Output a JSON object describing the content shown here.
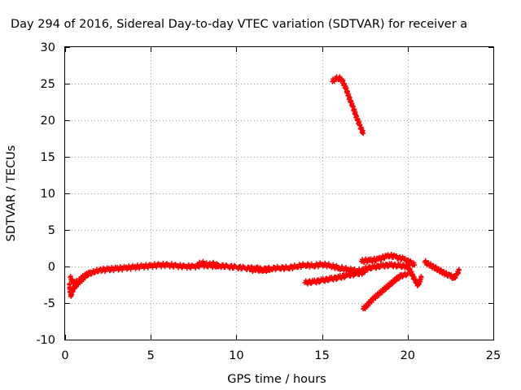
{
  "chart_data": {
    "type": "scatter",
    "title": "Day 294 of 2016, Sidereal Day-to-day VTEC variation (SDTVAR) for receiver a",
    "xlabel": "GPS time / hours",
    "ylabel": "SDTVAR / TECUs",
    "xlim": [
      0,
      25
    ],
    "ylim": [
      -10,
      30
    ],
    "xticks": [
      0,
      5,
      10,
      15,
      20,
      25
    ],
    "yticks": [
      -10,
      -5,
      0,
      5,
      10,
      15,
      20,
      25,
      30
    ],
    "xtick_labels": [
      "0",
      "5",
      "10",
      "15",
      "20",
      "25"
    ],
    "ytick_labels": [
      "-10",
      "-5",
      "0",
      "5",
      "10",
      "15",
      "20",
      "25",
      "30"
    ],
    "grid": true,
    "point_color": "#ff0000",
    "marker": "plus",
    "series": [
      {
        "x": [
          0.25,
          0.3,
          0.35,
          0.4,
          0.5,
          0.6,
          0.7,
          0.8,
          0.9,
          1.0,
          1.1,
          1.2,
          1.3,
          1.4,
          1.5
        ],
        "y": [
          -2.5,
          -3.5,
          -4.0,
          -3.5,
          -3.0,
          -2.8,
          -2.5,
          -2.2,
          -2.0,
          -1.8,
          -1.5,
          -1.3,
          -1.0,
          -0.9,
          -0.8
        ]
      },
      {
        "x": [
          0.3,
          0.4,
          0.5,
          0.6,
          0.8,
          1.0,
          1.2,
          1.4,
          1.6,
          1.8,
          2.0,
          2.5,
          3.0,
          3.5,
          4.0,
          4.5,
          5.0,
          5.5,
          6.0,
          6.5,
          7.0,
          7.5,
          8.0,
          8.5,
          9.0,
          9.5,
          10.0,
          10.5,
          11.0,
          11.5,
          12.0,
          12.5,
          13.0,
          13.5,
          14.0,
          14.5,
          15.0,
          15.5,
          16.0,
          16.5,
          17.0,
          17.5
        ],
        "y": [
          -1.5,
          -2.0,
          -2.3,
          -2.2,
          -2.0,
          -1.5,
          -1.2,
          -1.0,
          -0.8,
          -0.6,
          -0.5,
          -0.4,
          -0.3,
          -0.2,
          -0.1,
          0.0,
          0.1,
          0.2,
          0.2,
          0.1,
          0.0,
          0.0,
          0.2,
          0.1,
          0.1,
          0.0,
          -0.1,
          -0.2,
          -0.3,
          -0.4,
          -0.3,
          -0.2,
          -0.2,
          0.0,
          0.2,
          0.1,
          0.3,
          0.1,
          -0.2,
          -0.4,
          -0.6,
          -0.5
        ]
      },
      {
        "x": [
          7.8,
          8.0,
          8.2,
          8.4,
          8.6,
          8.8,
          9.0
        ],
        "y": [
          0.3,
          0.5,
          0.3,
          0.2,
          0.4,
          0.2,
          0.1
        ]
      },
      {
        "x": [
          10.8,
          11.0,
          11.2,
          11.4,
          11.6,
          11.8,
          12.0
        ],
        "y": [
          -0.3,
          -0.5,
          -0.2,
          -0.6,
          -0.4,
          -0.5,
          -0.3
        ]
      },
      {
        "x": [
          14.0,
          14.5,
          15.0,
          15.5,
          16.0,
          16.5,
          17.0,
          17.5
        ],
        "y": [
          -2.2,
          -2.1,
          -1.9,
          -1.7,
          -1.5,
          -1.2,
          -1.0,
          -0.8
        ]
      },
      {
        "x": [
          15.6,
          15.8,
          16.0,
          16.2,
          16.4,
          16.6,
          16.8,
          17.0,
          17.2,
          17.4
        ],
        "y": [
          25.3,
          25.7,
          25.8,
          25.3,
          24.3,
          23.0,
          21.8,
          20.5,
          19.3,
          18.2
        ]
      },
      {
        "x": [
          17.3,
          17.5,
          17.8,
          18.0,
          18.3,
          18.5,
          18.8,
          19.0,
          19.3,
          19.5,
          19.8,
          20.0,
          20.2,
          20.4
        ],
        "y": [
          0.7,
          0.8,
          0.8,
          0.9,
          1.0,
          1.2,
          1.4,
          1.5,
          1.3,
          1.2,
          1.0,
          0.8,
          0.5,
          0.2
        ]
      },
      {
        "x": [
          17.4,
          17.6,
          17.8,
          18.0,
          18.2,
          18.4,
          18.6,
          18.8,
          19.0,
          19.2,
          19.4,
          19.6,
          19.8,
          20.0
        ],
        "y": [
          -5.8,
          -5.4,
          -4.9,
          -4.4,
          -4.0,
          -3.6,
          -3.2,
          -2.8,
          -2.4,
          -2.0,
          -1.6,
          -1.3,
          -1.1,
          -1.0
        ]
      },
      {
        "x": [
          17.5,
          18.0,
          18.5,
          19.0,
          19.5,
          20.0,
          20.2,
          20.4,
          20.6,
          20.8
        ],
        "y": [
          -0.3,
          -0.1,
          0.1,
          0.2,
          0.1,
          0.0,
          -0.8,
          -1.8,
          -2.5,
          -1.5
        ]
      },
      {
        "x": [
          21.0,
          21.3,
          21.6,
          21.9,
          22.2,
          22.5,
          22.7,
          22.9,
          23.0
        ],
        "y": [
          0.6,
          0.2,
          -0.2,
          -0.6,
          -1.0,
          -1.3,
          -1.6,
          -1.0,
          -0.5
        ]
      }
    ]
  }
}
